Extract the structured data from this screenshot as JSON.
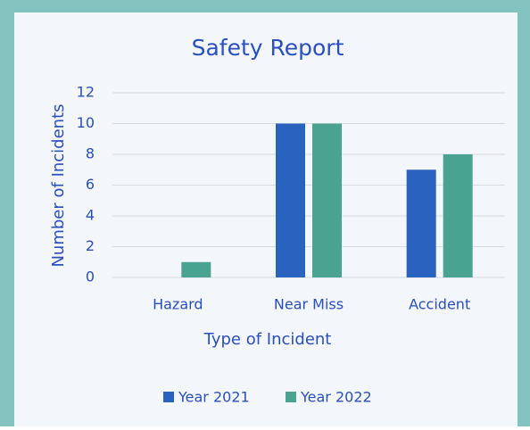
{
  "chart_data": {
    "type": "bar",
    "title": "Safety Report",
    "x_label": "Type of Incident",
    "y_label": "Number of Incidents",
    "categories": [
      "Hazard",
      "Near Miss",
      "Accident"
    ],
    "series": [
      {
        "name": "Year 2021",
        "color": "#2a62c0",
        "values": [
          0,
          10,
          7
        ]
      },
      {
        "name": "Year 2022",
        "color": "#4aa391",
        "values": [
          1,
          10,
          8
        ]
      }
    ],
    "ylim": [
      0,
      12
    ],
    "yticks": [
      0,
      2,
      4,
      6,
      8,
      10,
      12
    ],
    "grid": true,
    "legend": "bottom"
  }
}
